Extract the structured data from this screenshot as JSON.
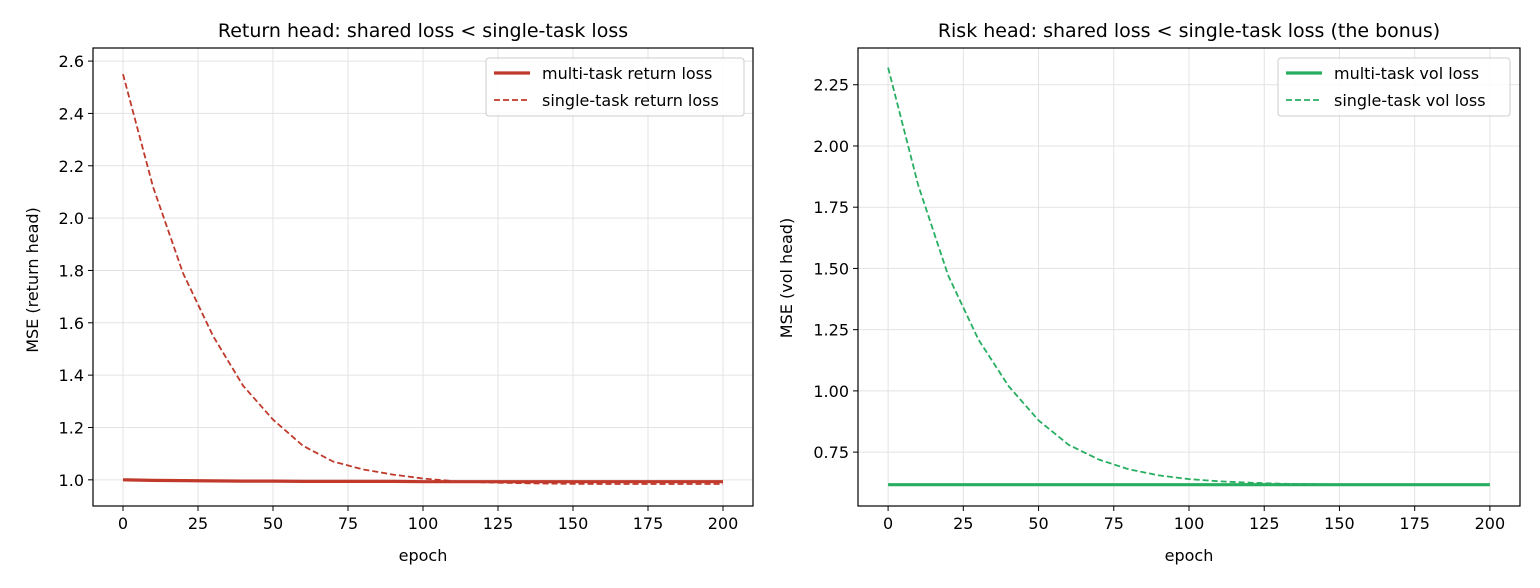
{
  "chart_data": [
    {
      "type": "line",
      "title": "Return head: shared loss < single-task loss",
      "xlabel": "epoch",
      "ylabel": "MSE (return head)",
      "xlim": [
        -10,
        210
      ],
      "ylim": [
        0.9,
        2.65
      ],
      "xticks": [
        "0",
        "25",
        "50",
        "75",
        "100",
        "125",
        "150",
        "175",
        "200"
      ],
      "yticks": [
        "1.0",
        "1.2",
        "1.4",
        "1.6",
        "1.8",
        "2.0",
        "2.2",
        "2.4",
        "2.6"
      ],
      "grid": true,
      "legend": "upper right",
      "series": [
        {
          "name": "multi-task return loss",
          "style": "solid",
          "color": "#c0392b",
          "x": [
            0,
            10,
            20,
            30,
            40,
            50,
            60,
            70,
            80,
            90,
            100,
            110,
            120,
            130,
            140,
            150,
            160,
            170,
            180,
            190,
            200
          ],
          "y": [
            1.0,
            0.998,
            0.997,
            0.996,
            0.995,
            0.995,
            0.994,
            0.994,
            0.994,
            0.994,
            0.993,
            0.993,
            0.993,
            0.993,
            0.993,
            0.993,
            0.993,
            0.993,
            0.993,
            0.993,
            0.993
          ]
        },
        {
          "name": "single-task return loss",
          "style": "dashed",
          "color": "#c0392b",
          "x": [
            0,
            10,
            20,
            30,
            40,
            50,
            60,
            70,
            80,
            90,
            100,
            110,
            120,
            130,
            140,
            150,
            160,
            170,
            180,
            190,
            200
          ],
          "y": [
            2.55,
            2.12,
            1.79,
            1.55,
            1.36,
            1.23,
            1.13,
            1.07,
            1.04,
            1.02,
            1.005,
            0.995,
            0.99,
            0.988,
            0.986,
            0.985,
            0.984,
            0.984,
            0.984,
            0.984,
            0.984
          ]
        }
      ]
    },
    {
      "type": "line",
      "title": "Risk head: shared loss < single-task loss (the bonus)",
      "xlabel": "epoch",
      "ylabel": "MSE (vol head)",
      "xlim": [
        -10,
        210
      ],
      "ylim": [
        0.53,
        2.4
      ],
      "xticks": [
        "0",
        "25",
        "50",
        "75",
        "100",
        "125",
        "150",
        "175",
        "200"
      ],
      "yticks": [
        "0.75",
        "1.00",
        "1.25",
        "1.50",
        "1.75",
        "2.00",
        "2.25"
      ],
      "grid": true,
      "legend": "upper right",
      "series": [
        {
          "name": "multi-task vol loss",
          "style": "solid",
          "color": "#27ae60",
          "x": [
            0,
            10,
            20,
            30,
            40,
            50,
            60,
            70,
            80,
            90,
            100,
            110,
            120,
            130,
            140,
            150,
            160,
            170,
            180,
            190,
            200
          ],
          "y": [
            0.617,
            0.617,
            0.617,
            0.617,
            0.617,
            0.617,
            0.617,
            0.617,
            0.617,
            0.617,
            0.617,
            0.617,
            0.617,
            0.617,
            0.617,
            0.617,
            0.617,
            0.617,
            0.617,
            0.617,
            0.617
          ]
        },
        {
          "name": "single-task vol loss",
          "style": "dashed",
          "color": "#27ae60",
          "x": [
            0,
            10,
            20,
            30,
            40,
            50,
            60,
            70,
            80,
            90,
            100,
            110,
            120,
            130,
            140,
            150,
            160,
            170,
            180,
            190,
            200
          ],
          "y": [
            2.32,
            1.84,
            1.47,
            1.21,
            1.02,
            0.88,
            0.78,
            0.72,
            0.68,
            0.655,
            0.64,
            0.631,
            0.625,
            0.621,
            0.619,
            0.618,
            0.617,
            0.617,
            0.617,
            0.617,
            0.617
          ]
        }
      ]
    }
  ]
}
